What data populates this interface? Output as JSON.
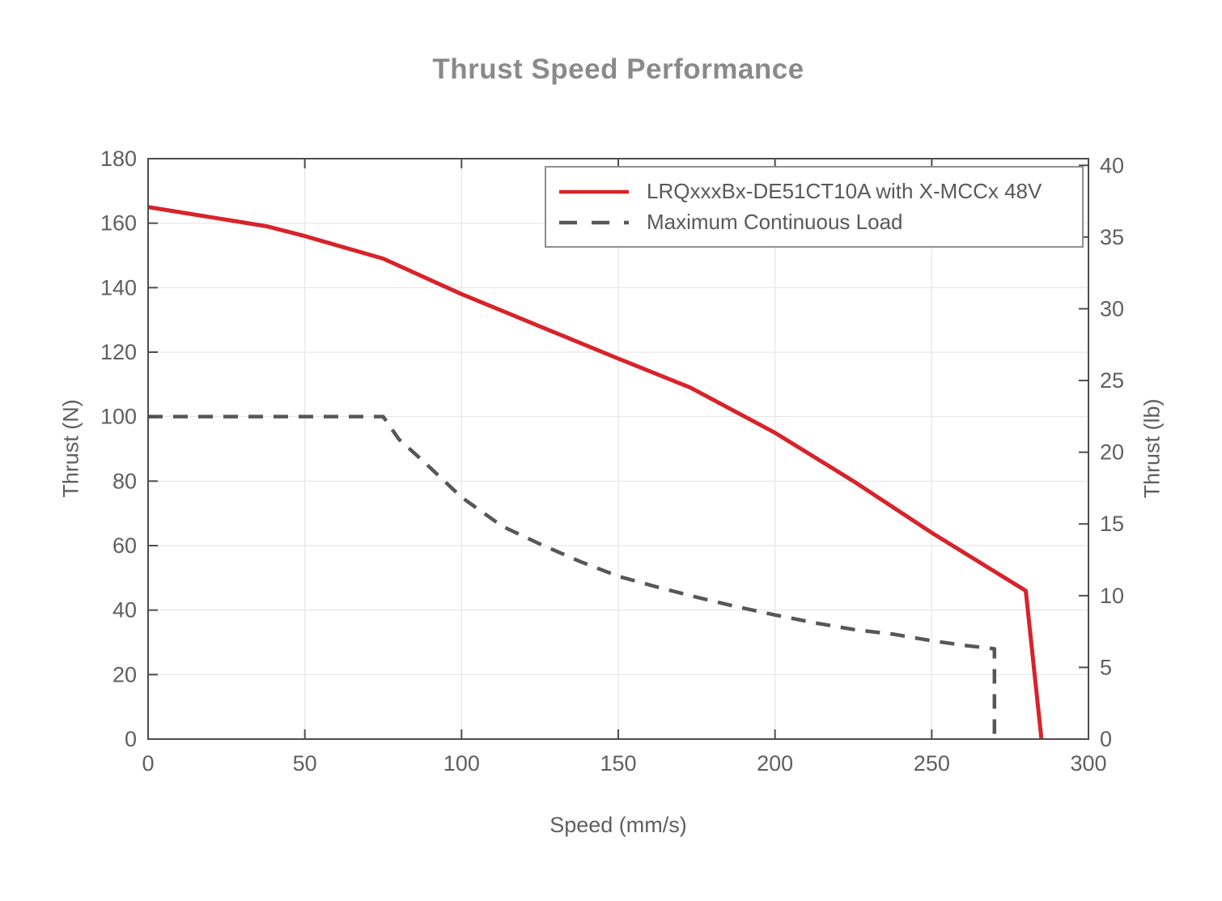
{
  "page": {
    "background": "#ffffff"
  },
  "chart_data": {
    "type": "line",
    "title": "Thrust Speed Performance",
    "xlabel": "Speed (mm/s)",
    "ylabel_left": "Thrust (N)",
    "ylabel_right": "Thrust (lb)",
    "xlim": [
      0,
      300
    ],
    "ylim_left": [
      0,
      180
    ],
    "ylim_right": [
      0,
      40
    ],
    "x_ticks": [
      0,
      50,
      100,
      150,
      200,
      250,
      300
    ],
    "y_ticks_left": [
      0,
      20,
      40,
      60,
      80,
      100,
      120,
      140,
      160,
      180
    ],
    "y_ticks_right": [
      0,
      5,
      10,
      15,
      20,
      25,
      30,
      35,
      40
    ],
    "grid": true,
    "legend_position": "top-right-inside",
    "colors": {
      "axis": "#4d4d4d",
      "grid": "#e2e2e2",
      "tick_text": "#5f5f5f",
      "title_text": "#8a8a8a",
      "series_red": "#d8232a",
      "series_gray": "#575757"
    },
    "series": [
      {
        "name": "LRQxxxBx-DE51CT10A with X-MCCx 48V",
        "color": "#d8232a",
        "style": "solid",
        "width": 5,
        "points": [
          [
            0,
            165
          ],
          [
            38,
            159
          ],
          [
            50,
            156
          ],
          [
            75,
            149
          ],
          [
            100,
            138
          ],
          [
            125,
            128
          ],
          [
            150,
            118
          ],
          [
            173,
            109
          ],
          [
            200,
            95
          ],
          [
            225,
            80
          ],
          [
            250,
            64
          ],
          [
            280,
            46
          ],
          [
            285,
            0
          ]
        ]
      },
      {
        "name": "Maximum Continuous Load",
        "color": "#575757",
        "style": "dashed",
        "width": 4.5,
        "points": [
          [
            0,
            100
          ],
          [
            75,
            100
          ],
          [
            80,
            93
          ],
          [
            88,
            86
          ],
          [
            100,
            75
          ],
          [
            113,
            66
          ],
          [
            125,
            60.5
          ],
          [
            138,
            55
          ],
          [
            150,
            50.5
          ],
          [
            163,
            47
          ],
          [
            175,
            44
          ],
          [
            188,
            41
          ],
          [
            200,
            38.5
          ],
          [
            213,
            36
          ],
          [
            225,
            34
          ],
          [
            238,
            32.5
          ],
          [
            250,
            30.5
          ],
          [
            261,
            29
          ],
          [
            270,
            28
          ],
          [
            270,
            0
          ]
        ]
      }
    ]
  }
}
